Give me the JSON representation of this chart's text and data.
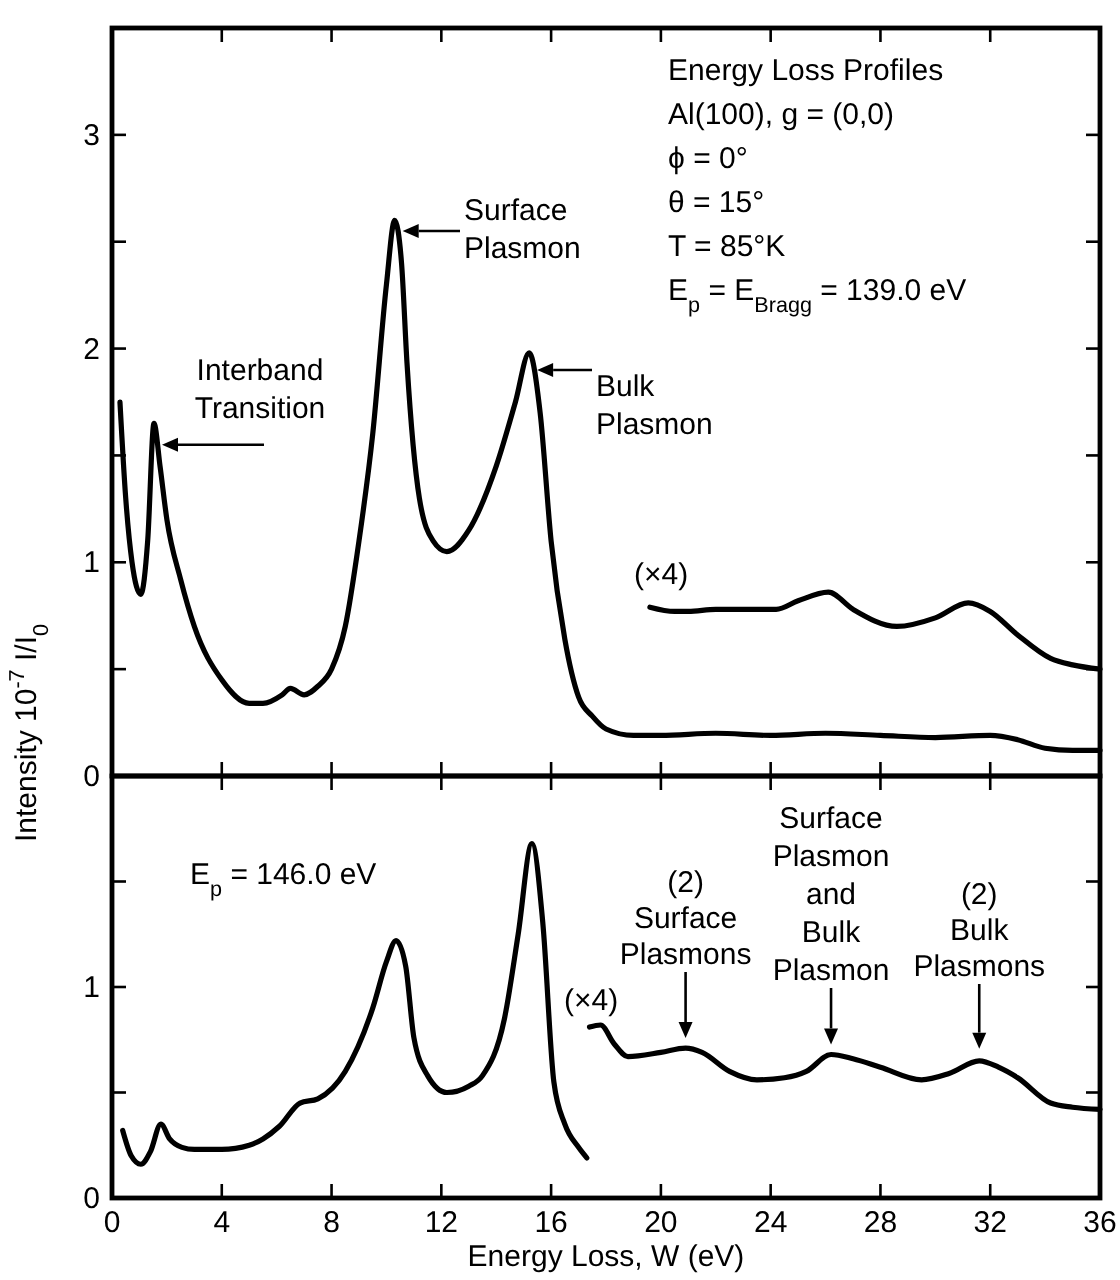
{
  "chart_data": [
    {
      "type": "line",
      "ylabel": "Intensity 10$^{-7}$ I/I$_{0}$",
      "xlim": [
        0,
        36
      ],
      "xticks": [
        {
          "value": 0,
          "label": null
        },
        {
          "value": 4,
          "label": null
        },
        {
          "value": 8,
          "label": null
        },
        {
          "value": 12,
          "label": null
        },
        {
          "value": 16,
          "label": null
        },
        {
          "value": 20,
          "label": null
        },
        {
          "value": 24,
          "label": null
        },
        {
          "value": 28,
          "label": null
        },
        {
          "value": 32,
          "label": null
        },
        {
          "value": 36,
          "label": null
        }
      ],
      "ylim": [
        0,
        3.5
      ],
      "yticks": [
        0,
        {
          "value": 0.5,
          "label": null
        },
        1,
        {
          "value": 1.5,
          "label": null
        },
        2,
        {
          "value": 2.5,
          "label": null
        },
        3
      ],
      "tick_labels": "y",
      "grid": false,
      "line_style": "solid",
      "marker": "none",
      "series": [
        {
          "color": "#000000",
          "x": [
            0.29,
            0.5,
            0.73,
            1.05,
            1.3,
            1.53,
            1.75,
            2,
            2.5,
            3,
            4,
            5,
            5.5,
            6.2,
            6.5,
            7,
            7.5,
            8,
            8.5,
            9,
            9.5,
            10,
            10.3,
            10.55,
            10.75,
            11.2,
            11.7,
            12.2,
            13,
            14,
            14.7,
            15.2,
            15.6,
            16,
            16.5,
            17,
            17.5,
            18,
            19,
            20,
            22,
            24,
            26,
            28,
            30,
            32,
            33,
            34,
            35,
            36
          ],
          "values": [
            1.75,
            1.3,
            1.0,
            0.85,
            1.1,
            1.65,
            1.45,
            1.2,
            0.92,
            0.7,
            0.45,
            0.34,
            0.34,
            0.38,
            0.41,
            0.38,
            0.42,
            0.5,
            0.7,
            1.1,
            1.6,
            2.3,
            2.6,
            2.4,
            1.93,
            1.3,
            1.1,
            1.05,
            1.15,
            1.45,
            1.75,
            1.98,
            1.7,
            1.1,
            0.64,
            0.37,
            0.28,
            0.22,
            0.19,
            0.19,
            0.2,
            0.19,
            0.2,
            0.19,
            0.18,
            0.19,
            0.17,
            0.13,
            0.12,
            0.12
          ]
        },
        {
          "color": "#000000",
          "x": [
            19.6,
            20.5,
            21,
            22,
            23,
            24.2,
            25,
            26.1,
            27,
            28.6,
            30,
            31.2,
            32,
            33,
            34.2,
            35,
            36
          ],
          "values": [
            0.79,
            0.77,
            0.77,
            0.78,
            0.78,
            0.78,
            0.82,
            0.86,
            0.78,
            0.7,
            0.74,
            0.81,
            0.77,
            0.66,
            0.55,
            0.52,
            0.5
          ]
        }
      ],
      "annotations": [
        "Energy Loss Profiles\nAl(100), g = (0,0)\nϕ = 0°\nθ = 15°\nT = 85°K\nE$_{p}$ = E$_{Bragg}$ = 139.0 eV",
        {
          "text": "Interband\nTransition",
          "x": 1.53,
          "y": 1.55
        },
        {
          "text": "Surface\nPlasmon",
          "x": 10.3,
          "y": 2.55
        },
        {
          "text": "Bulk\nPlasmon",
          "x": 15.2,
          "y": 1.9
        },
        "(×4)"
      ]
    },
    {
      "type": "line",
      "xlabel": "Energy Loss, W   (eV)",
      "xlim": [
        0,
        36
      ],
      "xticks": [
        0,
        4,
        8,
        12,
        16,
        20,
        24,
        28,
        32,
        36
      ],
      "ylim": [
        0,
        2
      ],
      "yticks": [
        0,
        {
          "value": 0.5,
          "label": null
        },
        1,
        {
          "value": 1.5,
          "label": null
        }
      ],
      "grid": false,
      "line_style": "solid",
      "marker": "none",
      "series": [
        {
          "color": "#000000",
          "x": [
            0.39,
            0.7,
            1.05,
            1.4,
            1.78,
            2.1,
            2.55,
            3,
            4,
            5,
            5.5,
            6.1,
            6.85,
            7.5,
            8.5,
            9.5,
            10,
            10.35,
            10.7,
            11,
            11.5,
            12.2,
            13,
            13.5,
            14.3,
            14.8,
            15.3,
            15.7,
            16.1,
            16.5,
            17,
            17.3
          ],
          "values": [
            0.32,
            0.2,
            0.16,
            0.22,
            0.35,
            0.28,
            0.24,
            0.23,
            0.23,
            0.25,
            0.28,
            0.34,
            0.45,
            0.47,
            0.6,
            0.9,
            1.12,
            1.22,
            1.1,
            0.76,
            0.58,
            0.5,
            0.53,
            0.58,
            0.85,
            1.25,
            1.68,
            1.3,
            0.55,
            0.35,
            0.24,
            0.19
          ]
        },
        {
          "color": "#000000",
          "x": [
            17.4,
            17.8,
            18.3,
            18.8,
            20,
            20.9,
            21.5,
            22.5,
            23.5,
            24.5,
            25.3,
            26.2,
            27,
            28,
            29.5,
            30.5,
            31.6,
            32.3,
            33,
            34.2,
            35,
            36
          ],
          "values": [
            0.81,
            0.82,
            0.73,
            0.67,
            0.69,
            0.71,
            0.69,
            0.6,
            0.56,
            0.57,
            0.6,
            0.68,
            0.66,
            0.62,
            0.56,
            0.59,
            0.65,
            0.62,
            0.57,
            0.45,
            0.43,
            0.42
          ]
        }
      ],
      "annotations": [
        "E$_{p}$ = 146.0 eV",
        "(×4)",
        {
          "text": "(2)\nSurface\nPlasmons",
          "x": 20.9,
          "y": 0.72
        },
        {
          "text": "Surface\nPlasmon\nand\nBulk\nPlasmon",
          "x": 26.2,
          "y": 0.69
        },
        {
          "text": "(2)\nBulk\nPlasmons",
          "x": 31.6,
          "y": 0.67
        }
      ]
    }
  ]
}
